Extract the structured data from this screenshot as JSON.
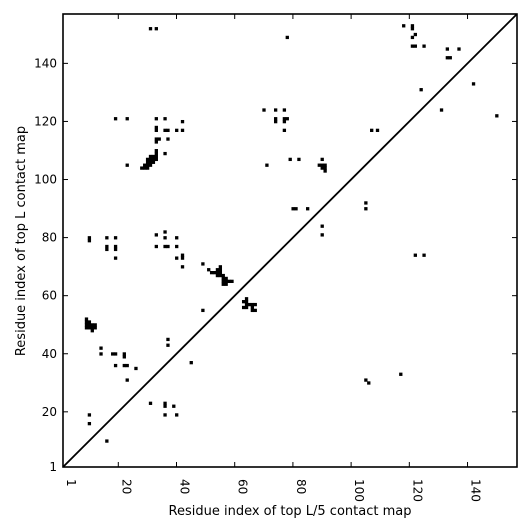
{
  "chart_data": {
    "type": "scatter",
    "title": "",
    "xlabel": "Residue index of top L/5 contact map",
    "ylabel": "Residue index of top L contact map",
    "xlim": [
      1,
      157
    ],
    "ylim": [
      1,
      157
    ],
    "xticks": [
      1,
      20,
      40,
      60,
      80,
      100,
      120,
      140
    ],
    "yticks": [
      1,
      20,
      40,
      60,
      80,
      100,
      120,
      140
    ],
    "xtick_labels": [
      "1",
      "20",
      "40",
      "60",
      "80",
      "100",
      "120",
      "140"
    ],
    "ytick_labels": [
      "1",
      "20",
      "40",
      "60",
      "80",
      "100",
      "120",
      "140"
    ],
    "x_tick_rotation_deg": 90,
    "diagonal": true,
    "marker": "square",
    "marker_color": "#000000",
    "grid": false,
    "legend": "none",
    "upper_triangle_points": [
      [
        31,
        152
      ],
      [
        33,
        152
      ],
      [
        118,
        153
      ],
      [
        121,
        153
      ],
      [
        121,
        152
      ],
      [
        122,
        150
      ],
      [
        121,
        149
      ],
      [
        121,
        146
      ],
      [
        122,
        146
      ],
      [
        125,
        146
      ],
      [
        133,
        145
      ],
      [
        137,
        145
      ],
      [
        133,
        142
      ],
      [
        134,
        142
      ],
      [
        78,
        149
      ],
      [
        124,
        131
      ],
      [
        142,
        133
      ],
      [
        131,
        124
      ],
      [
        19,
        121
      ],
      [
        23,
        121
      ],
      [
        33,
        121
      ],
      [
        36,
        121
      ],
      [
        33,
        118
      ],
      [
        33,
        117
      ],
      [
        36,
        117
      ],
      [
        37,
        117
      ],
      [
        40,
        117
      ],
      [
        42,
        117
      ],
      [
        42,
        120
      ],
      [
        33,
        114
      ],
      [
        34,
        114
      ],
      [
        37,
        114
      ],
      [
        33,
        113
      ],
      [
        70,
        124
      ],
      [
        74,
        124
      ],
      [
        77,
        124
      ],
      [
        74,
        121
      ],
      [
        74,
        120
      ],
      [
        77,
        121
      ],
      [
        78,
        121
      ],
      [
        77,
        120
      ],
      [
        77,
        117
      ],
      [
        107,
        117
      ],
      [
        109,
        117
      ],
      [
        150,
        122
      ],
      [
        23,
        105
      ],
      [
        71,
        105
      ],
      [
        28,
        104
      ],
      [
        29,
        104
      ],
      [
        30,
        104
      ],
      [
        29,
        105
      ],
      [
        30,
        105
      ],
      [
        31,
        105
      ],
      [
        30,
        106
      ],
      [
        31,
        106
      ],
      [
        32,
        106
      ],
      [
        31,
        107
      ],
      [
        32,
        107
      ],
      [
        33,
        107
      ],
      [
        31,
        108
      ],
      [
        32,
        108
      ],
      [
        33,
        108
      ],
      [
        33,
        109
      ],
      [
        33,
        110
      ],
      [
        30,
        107
      ],
      [
        36,
        109
      ],
      [
        79,
        107
      ],
      [
        82,
        107
      ],
      [
        90,
        107
      ],
      [
        89,
        105
      ],
      [
        90,
        105
      ],
      [
        91,
        105
      ],
      [
        90,
        104
      ],
      [
        91,
        104
      ],
      [
        91,
        103
      ],
      [
        80,
        90
      ],
      [
        81,
        90
      ],
      [
        85,
        90
      ],
      [
        105,
        92
      ],
      [
        105,
        90
      ],
      [
        90,
        84
      ],
      [
        90,
        81
      ]
    ],
    "lower_triangle_points": [
      [
        10,
        80
      ],
      [
        10,
        79
      ],
      [
        16,
        80
      ],
      [
        19,
        80
      ],
      [
        16,
        77
      ],
      [
        16,
        76
      ],
      [
        19,
        77
      ],
      [
        19,
        76
      ],
      [
        19,
        73
      ],
      [
        33,
        81
      ],
      [
        36,
        82
      ],
      [
        36,
        80
      ],
      [
        33,
        77
      ],
      [
        36,
        77
      ],
      [
        37,
        77
      ],
      [
        40,
        80
      ],
      [
        40,
        77
      ],
      [
        40,
        73
      ],
      [
        42,
        74
      ],
      [
        42,
        73
      ],
      [
        42,
        70
      ],
      [
        49,
        71
      ],
      [
        51,
        69
      ],
      [
        52,
        68
      ],
      [
        53,
        68
      ],
      [
        54,
        69
      ],
      [
        55,
        70
      ],
      [
        55,
        69
      ],
      [
        54,
        68
      ],
      [
        55,
        68
      ],
      [
        56,
        67
      ],
      [
        55,
        67
      ],
      [
        54,
        67
      ],
      [
        56,
        66
      ],
      [
        57,
        66
      ],
      [
        56,
        65
      ],
      [
        57,
        65
      ],
      [
        58,
        65
      ],
      [
        59,
        65
      ],
      [
        56,
        64
      ],
      [
        57,
        64
      ],
      [
        64,
        59
      ],
      [
        64,
        58
      ],
      [
        63,
        58
      ],
      [
        64,
        57
      ],
      [
        65,
        57
      ],
      [
        66,
        57
      ],
      [
        63,
        56
      ],
      [
        64,
        56
      ],
      [
        66,
        56
      ],
      [
        67,
        57
      ],
      [
        66,
        55
      ],
      [
        67,
        55
      ],
      [
        49,
        55
      ],
      [
        122,
        74
      ],
      [
        125,
        74
      ],
      [
        9,
        52
      ],
      [
        9,
        51
      ],
      [
        10,
        51
      ],
      [
        9,
        50
      ],
      [
        10,
        50
      ],
      [
        11,
        50
      ],
      [
        12,
        50
      ],
      [
        9,
        49
      ],
      [
        10,
        49
      ],
      [
        11,
        49
      ],
      [
        12,
        49
      ],
      [
        11,
        48
      ],
      [
        14,
        42
      ],
      [
        14,
        40
      ],
      [
        18,
        40
      ],
      [
        19,
        40
      ],
      [
        22,
        40
      ],
      [
        22,
        39
      ],
      [
        19,
        36
      ],
      [
        22,
        36
      ],
      [
        23,
        36
      ],
      [
        23,
        31
      ],
      [
        26,
        35
      ],
      [
        37,
        45
      ],
      [
        37,
        43
      ],
      [
        45,
        37
      ],
      [
        31,
        23
      ],
      [
        36,
        23
      ],
      [
        36,
        22
      ],
      [
        39,
        22
      ],
      [
        36,
        19
      ],
      [
        40,
        19
      ],
      [
        10,
        19
      ],
      [
        10,
        16
      ],
      [
        16,
        10
      ],
      [
        105,
        31
      ],
      [
        106,
        30
      ],
      [
        117,
        33
      ]
    ]
  }
}
